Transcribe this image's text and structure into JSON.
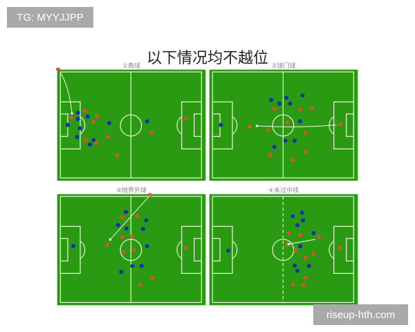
{
  "watermarks": {
    "top_left": "TG: MYYJJPP",
    "bottom_right": "riseup-hth.com"
  },
  "title": "以下情况均不越位",
  "panels": [
    {
      "label": "①角球"
    },
    {
      "label": "②球门球"
    },
    {
      "label": "③抛界外球"
    },
    {
      "label": "④未过中线"
    }
  ],
  "colors": {
    "pitch": "#2a9a12",
    "lines": "#d8f0c8",
    "team_red": "#d4562a",
    "team_blue": "#1230b0"
  }
}
